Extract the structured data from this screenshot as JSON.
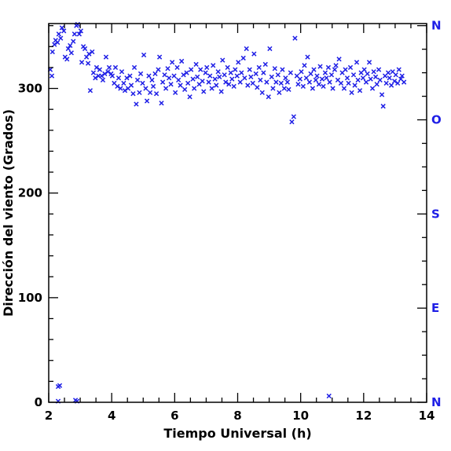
{
  "chart_data": {
    "type": "scatter",
    "title": "",
    "xlabel": "Tiempo Universal (h)",
    "ylabel": "Dirección del viento (Grados)",
    "xlim": [
      2,
      14
    ],
    "ylim": [
      0,
      362
    ],
    "x_ticks": [
      2,
      4,
      6,
      8,
      10,
      12,
      14
    ],
    "y_ticks": [
      0,
      100,
      200,
      300
    ],
    "grid": false,
    "legend": "none",
    "marker": "x",
    "color": "#1f1fe6",
    "compass_labels": [
      {
        "label": "N",
        "deg": 360
      },
      {
        "label": "O",
        "deg": 270
      },
      {
        "label": "S",
        "deg": 180
      },
      {
        "label": "E",
        "deg": 90
      },
      {
        "label": "N",
        "deg": 0
      }
    ],
    "series": [
      {
        "points": [
          [
            2.05,
            318
          ],
          [
            2.1,
            312
          ],
          [
            2.12,
            335
          ],
          [
            2.18,
            342
          ],
          [
            2.22,
            346
          ],
          [
            2.28,
            344
          ],
          [
            2.32,
            352
          ],
          [
            2.38,
            348
          ],
          [
            2.42,
            358
          ],
          [
            2.48,
            355
          ],
          [
            2.52,
            330
          ],
          [
            2.58,
            328
          ],
          [
            2.62,
            338
          ],
          [
            2.68,
            341
          ],
          [
            2.72,
            334
          ],
          [
            2.78,
            345
          ],
          [
            2.82,
            352
          ],
          [
            2.88,
            360
          ],
          [
            2.92,
            362
          ],
          [
            2.97,
            352
          ],
          [
            3.02,
            355
          ],
          [
            3.05,
            325
          ],
          [
            3.1,
            340
          ],
          [
            3.15,
            338
          ],
          [
            3.2,
            330
          ],
          [
            3.25,
            324
          ],
          [
            3.28,
            333
          ],
          [
            3.32,
            298
          ],
          [
            3.38,
            335
          ],
          [
            3.42,
            315
          ],
          [
            3.48,
            310
          ],
          [
            3.52,
            320
          ],
          [
            3.58,
            312
          ],
          [
            3.62,
            318
          ],
          [
            3.68,
            312
          ],
          [
            3.72,
            308
          ],
          [
            3.78,
            314
          ],
          [
            3.82,
            330
          ],
          [
            3.88,
            316
          ],
          [
            3.92,
            320
          ],
          [
            3.98,
            314
          ],
          [
            4.02,
            312
          ],
          [
            4.08,
            305
          ],
          [
            4.12,
            320
          ],
          [
            4.18,
            302
          ],
          [
            4.22,
            310
          ],
          [
            4.28,
            300
          ],
          [
            4.32,
            316
          ],
          [
            4.38,
            305
          ],
          [
            4.42,
            298
          ],
          [
            4.48,
            310
          ],
          [
            4.52,
            300
          ],
          [
            4.58,
            312
          ],
          [
            4.62,
            303
          ],
          [
            4.68,
            295
          ],
          [
            4.72,
            320
          ],
          [
            4.78,
            285
          ],
          [
            4.82,
            308
          ],
          [
            4.88,
            296
          ],
          [
            4.92,
            314
          ],
          [
            4.98,
            305
          ],
          [
            5.02,
            332
          ],
          [
            5.08,
            300
          ],
          [
            5.12,
            288
          ],
          [
            5.18,
            312
          ],
          [
            5.22,
            296
          ],
          [
            5.28,
            308
          ],
          [
            5.32,
            302
          ],
          [
            5.38,
            314
          ],
          [
            5.42,
            295
          ],
          [
            5.48,
            318
          ],
          [
            5.52,
            330
          ],
          [
            5.58,
            286
          ],
          [
            5.62,
            306
          ],
          [
            5.68,
            313
          ],
          [
            5.72,
            300
          ],
          [
            5.78,
            319
          ],
          [
            5.82,
            310
          ],
          [
            5.88,
            304
          ],
          [
            5.92,
            325
          ],
          [
            5.98,
            312
          ],
          [
            6.02,
            296
          ],
          [
            6.08,
            320
          ],
          [
            6.12,
            308
          ],
          [
            6.18,
            303
          ],
          [
            6.22,
            326
          ],
          [
            6.28,
            313
          ],
          [
            6.32,
            299
          ],
          [
            6.38,
            315
          ],
          [
            6.42,
            305
          ],
          [
            6.48,
            292
          ],
          [
            6.52,
            318
          ],
          [
            6.58,
            309
          ],
          [
            6.62,
            300
          ],
          [
            6.68,
            323
          ],
          [
            6.72,
            311
          ],
          [
            6.78,
            304
          ],
          [
            6.82,
            318
          ],
          [
            6.88,
            307
          ],
          [
            6.92,
            297
          ],
          [
            6.98,
            315
          ],
          [
            7.02,
            320
          ],
          [
            7.08,
            306
          ],
          [
            7.12,
            312
          ],
          [
            7.18,
            300
          ],
          [
            7.22,
            322
          ],
          [
            7.28,
            309
          ],
          [
            7.32,
            303
          ],
          [
            7.38,
            316
          ],
          [
            7.42,
            311
          ],
          [
            7.48,
            297
          ],
          [
            7.52,
            327
          ],
          [
            7.58,
            313
          ],
          [
            7.62,
            306
          ],
          [
            7.68,
            320
          ],
          [
            7.72,
            304
          ],
          [
            7.78,
            315
          ],
          [
            7.82,
            309
          ],
          [
            7.88,
            302
          ],
          [
            7.92,
            318
          ],
          [
            7.98,
            312
          ],
          [
            8.02,
            325
          ],
          [
            8.08,
            306
          ],
          [
            8.12,
            315
          ],
          [
            8.18,
            329
          ],
          [
            8.22,
            310
          ],
          [
            8.28,
            338
          ],
          [
            8.32,
            303
          ],
          [
            8.38,
            318
          ],
          [
            8.42,
            311
          ],
          [
            8.48,
            305
          ],
          [
            8.52,
            333
          ],
          [
            8.58,
            314
          ],
          [
            8.62,
            301
          ],
          [
            8.68,
            320
          ],
          [
            8.72,
            308
          ],
          [
            8.78,
            296
          ],
          [
            8.82,
            315
          ],
          [
            8.88,
            323
          ],
          [
            8.92,
            306
          ],
          [
            8.98,
            292
          ],
          [
            9.02,
            338
          ],
          [
            9.08,
            311
          ],
          [
            9.12,
            300
          ],
          [
            9.18,
            319
          ],
          [
            9.22,
            306
          ],
          [
            9.28,
            313
          ],
          [
            9.32,
            296
          ],
          [
            9.38,
            305
          ],
          [
            9.42,
            318
          ],
          [
            9.48,
            300
          ],
          [
            9.52,
            310
          ],
          [
            9.58,
            306
          ],
          [
            9.62,
            299
          ],
          [
            9.68,
            315
          ],
          [
            9.72,
            268
          ],
          [
            9.78,
            273
          ],
          [
            9.82,
            348
          ],
          [
            9.88,
            312
          ],
          [
            9.92,
            304
          ],
          [
            9.98,
            309
          ],
          [
            10.02,
            316
          ],
          [
            10.08,
            302
          ],
          [
            10.12,
            322
          ],
          [
            10.18,
            310
          ],
          [
            10.22,
            330
          ],
          [
            10.28,
            306
          ],
          [
            10.32,
            314
          ],
          [
            10.38,
            300
          ],
          [
            10.42,
            318
          ],
          [
            10.48,
            308
          ],
          [
            10.52,
            312
          ],
          [
            10.58,
            304
          ],
          [
            10.62,
            321
          ],
          [
            10.68,
            309
          ],
          [
            10.72,
            302
          ],
          [
            10.78,
            315
          ],
          [
            10.82,
            310
          ],
          [
            10.88,
            320
          ],
          [
            10.92,
            306
          ],
          [
            10.98,
            313
          ],
          [
            11.02,
            300
          ],
          [
            11.08,
            318
          ],
          [
            11.12,
            322
          ],
          [
            11.18,
            308
          ],
          [
            11.22,
            328
          ],
          [
            11.28,
            305
          ],
          [
            11.32,
            315
          ],
          [
            11.38,
            300
          ],
          [
            11.42,
            318
          ],
          [
            11.48,
            310
          ],
          [
            11.52,
            305
          ],
          [
            11.58,
            320
          ],
          [
            11.62,
            296
          ],
          [
            11.68,
            313
          ],
          [
            11.72,
            303
          ],
          [
            11.78,
            325
          ],
          [
            11.82,
            308
          ],
          [
            11.88,
            298
          ],
          [
            11.92,
            315
          ],
          [
            11.98,
            310
          ],
          [
            12.02,
            318
          ],
          [
            12.08,
            306
          ],
          [
            12.12,
            314
          ],
          [
            12.18,
            325
          ],
          [
            12.22,
            309
          ],
          [
            12.28,
            300
          ],
          [
            12.32,
            316
          ],
          [
            12.38,
            311
          ],
          [
            12.42,
            304
          ],
          [
            12.48,
            318
          ],
          [
            12.52,
            308
          ],
          [
            12.58,
            294
          ],
          [
            12.62,
            283
          ],
          [
            12.68,
            312
          ],
          [
            12.72,
            305
          ],
          [
            12.78,
            315
          ],
          [
            12.82,
            310
          ],
          [
            12.88,
            303
          ],
          [
            12.92,
            316
          ],
          [
            12.98,
            307
          ],
          [
            13.02,
            313
          ],
          [
            13.08,
            305
          ],
          [
            13.12,
            318
          ],
          [
            13.18,
            309
          ],
          [
            13.22,
            312
          ],
          [
            13.28,
            306
          ],
          [
            2.3,
            15
          ],
          [
            2.35,
            16
          ],
          [
            2.3,
            1
          ],
          [
            2.85,
            2
          ],
          [
            2.9,
            1
          ],
          [
            10.9,
            6
          ]
        ]
      }
    ]
  }
}
